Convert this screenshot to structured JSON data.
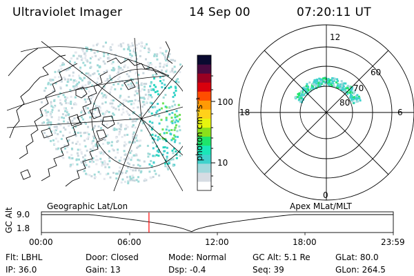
{
  "header": {
    "title": "Ultraviolet Imager",
    "date": "14 Sep 00",
    "time": "07:20:11 UT"
  },
  "colorbar": {
    "unit_label": "photon cm⁻²s⁻¹",
    "ticks": [
      "100",
      "10"
    ],
    "colors": [
      "#ffffff",
      "#d6dce3",
      "#a0d8dc",
      "#3fd2cc",
      "#19e7b8",
      "#1ee56b",
      "#8ae01b",
      "#e6f50e",
      "#ffd11a",
      "#ff9a05",
      "#ff4d00",
      "#d9000d",
      "#9a0022",
      "#4a0a40",
      "#0a0a30"
    ]
  },
  "left_map": {
    "label": "Geographic Lat/Lon"
  },
  "right_map": {
    "label": "Apex  MLat/MLT",
    "mlt_labels": [
      "12",
      "6",
      "0",
      "18"
    ],
    "lat_labels": [
      "60",
      "70",
      "80"
    ]
  },
  "timeline": {
    "axis_label": "GC Alt",
    "y_ticks": [
      "9.0",
      "1.8"
    ],
    "x_ticks": [
      "00:00",
      "06:00",
      "12:00",
      "18:00",
      "23:59"
    ],
    "current_time_hours": 7.336,
    "marker_color": "#ff0000"
  },
  "info": {
    "row1": {
      "flt": "Flt: LBHL",
      "door": "Door: Closed",
      "mode": "Mode: Normal",
      "gc_alt": "GC Alt: 5.1 Re",
      "glat": "GLat:  80.0"
    },
    "row2": {
      "ip": "IP: 36.0",
      "gain": "Gain: 13",
      "dsp": "Dsp:    -0.4",
      "seq": "Seq: 39",
      "glon": "GLon: 264.5"
    }
  }
}
